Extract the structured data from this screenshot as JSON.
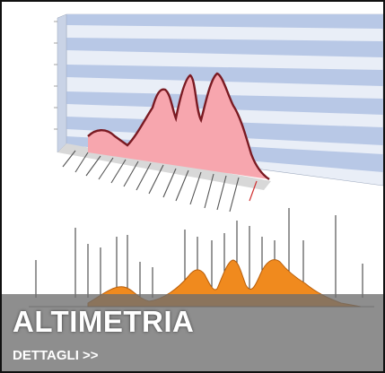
{
  "card": {
    "title": "ALTIMETRIA",
    "details_link": "DETTAGLI >>"
  },
  "figure": {
    "chart_3d_icon": "elevation-3d-chart",
    "profile_icon": "route-elevation-profile",
    "colors": {
      "chart_fill": "#f7a6ae",
      "chart_line": "#7a1a22",
      "chart_stripe": "#b8c8e6",
      "profile_fill": "#f08a1e",
      "caption_bg": "#6e6e6e"
    }
  }
}
